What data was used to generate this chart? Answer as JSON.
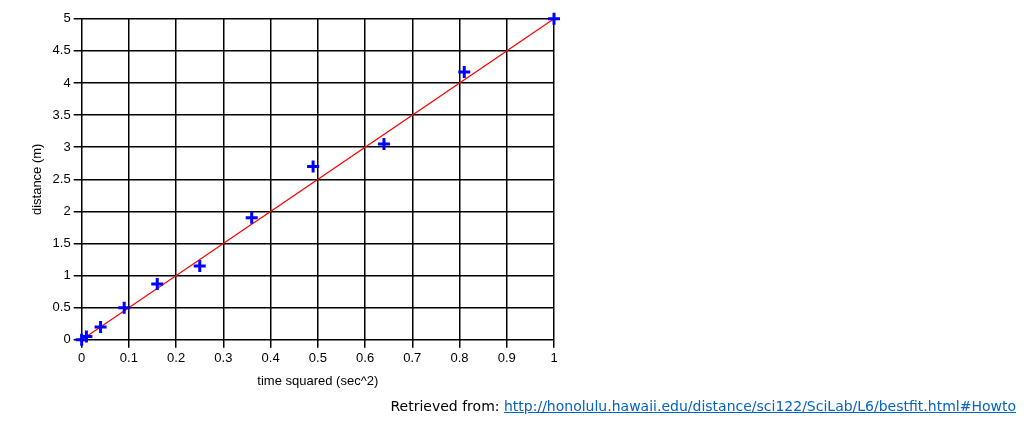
{
  "chart_data": {
    "type": "scatter",
    "xlabel": "time squared (sec^2)",
    "ylabel": "distance (m)",
    "xlim": [
      0,
      1
    ],
    "ylim": [
      0,
      5
    ],
    "xticks": [
      0,
      0.1,
      0.2,
      0.3,
      0.4,
      0.5,
      0.6,
      0.7,
      0.8,
      0.9,
      1
    ],
    "yticks": [
      0,
      0.5,
      1,
      1.5,
      2,
      2.5,
      3,
      3.5,
      4,
      4.5,
      5
    ],
    "grid": true,
    "series": [
      {
        "type": "scatter",
        "color": "#0000ff",
        "marker": "cross",
        "x": [
          0,
          0.01,
          0.04,
          0.09,
          0.16,
          0.25,
          0.36,
          0.49,
          0.64,
          0.81,
          1
        ],
        "values": [
          0,
          0.05,
          0.2,
          0.5,
          0.87,
          1.15,
          1.9,
          2.7,
          3.05,
          4.17,
          5
        ]
      },
      {
        "type": "line",
        "color": "#ff0000",
        "marker": "none",
        "x": [
          0,
          1
        ],
        "values": [
          0,
          5
        ]
      }
    ],
    "annotations": [
      "Retrieved from: http://honolulu.hawaii.edu/distance/sci122/SciLab/L6/bestfit.html#Howto"
    ]
  }
}
